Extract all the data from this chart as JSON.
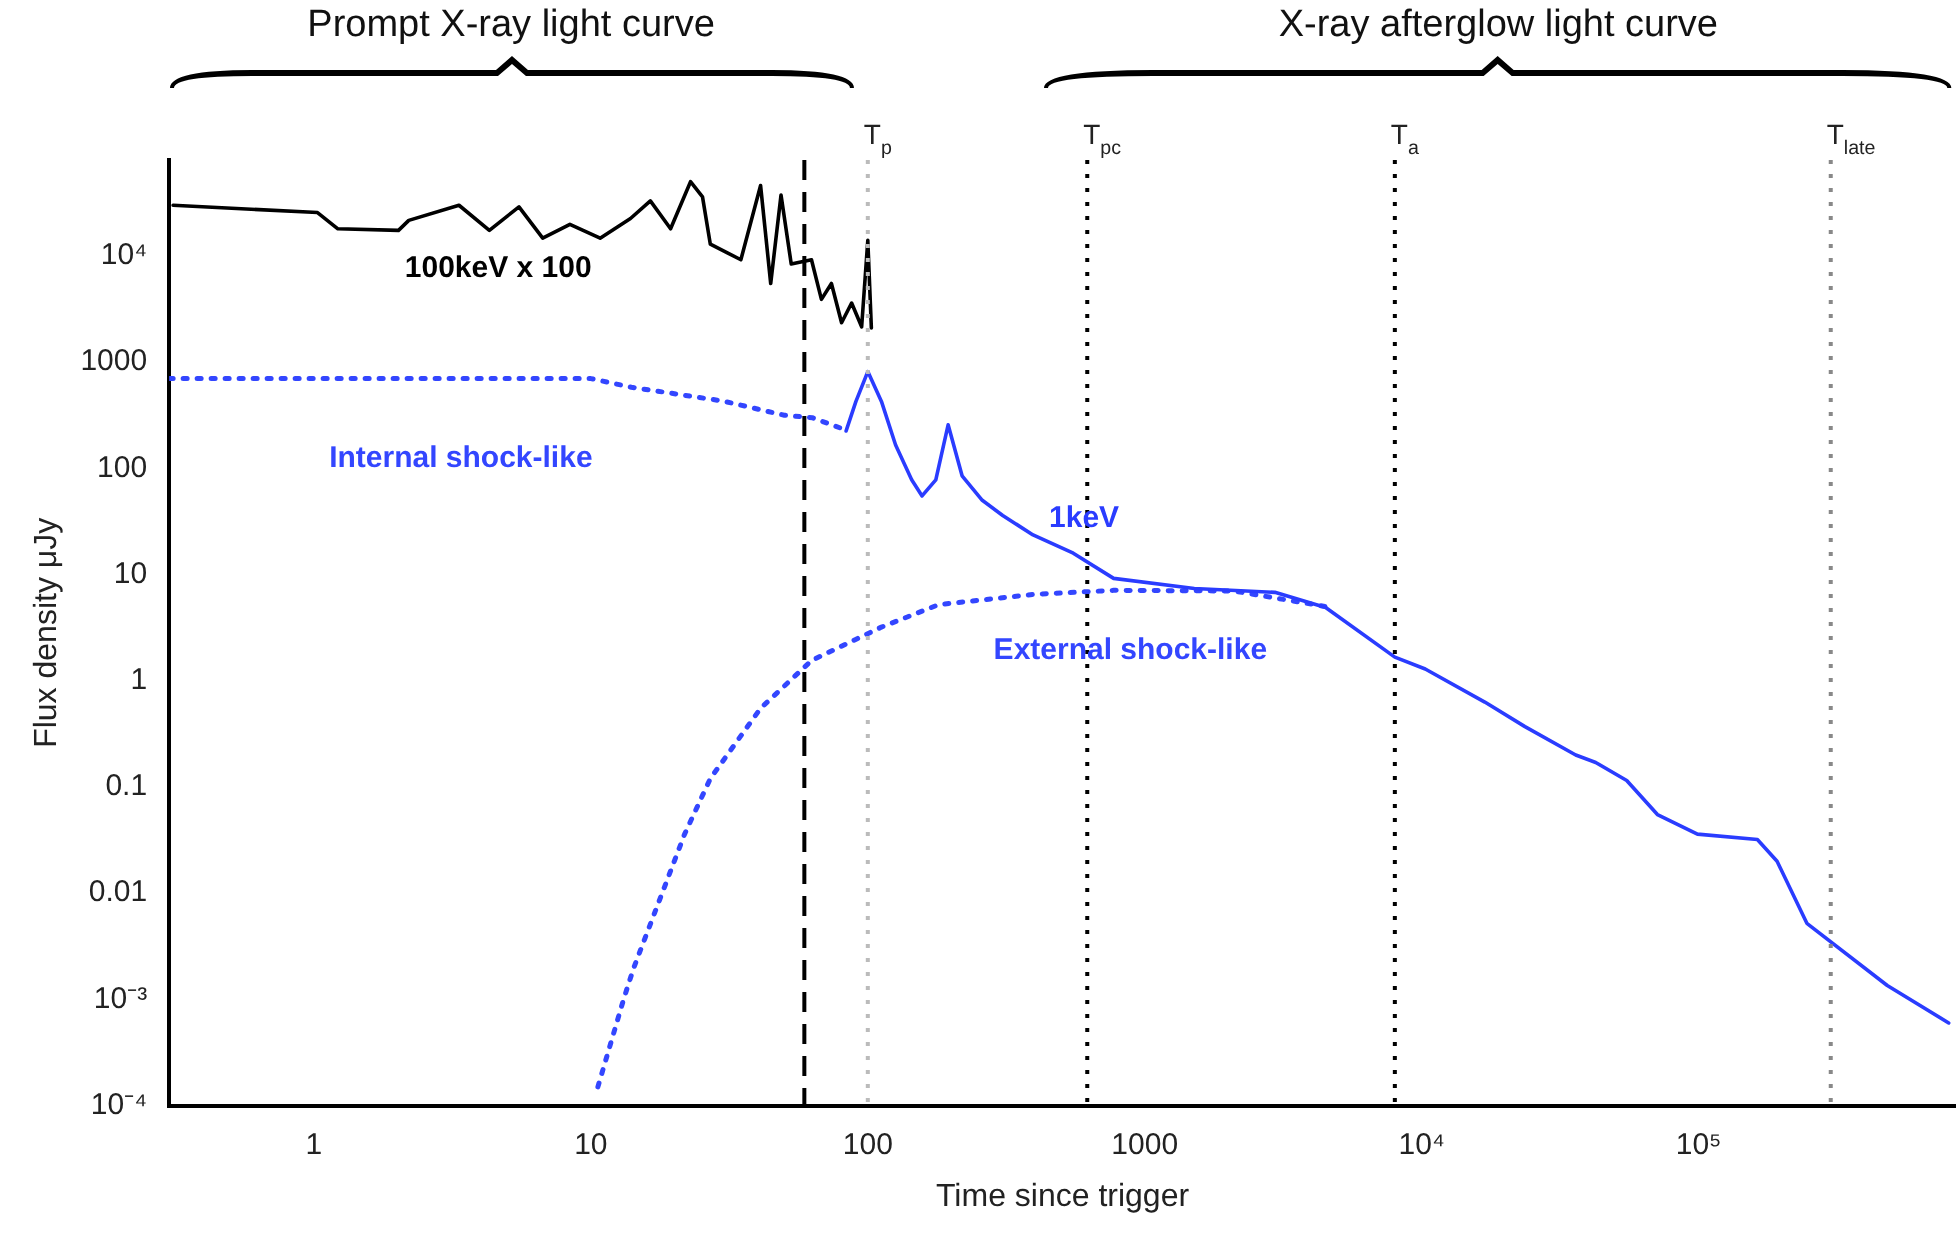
{
  "chart_data": {
    "type": "line",
    "xlabel": "Time since trigger",
    "ylabel": "Flux density μJy",
    "annotations": [
      "Prompt X-ray light curve",
      "X-ray afterglow light curve"
    ],
    "log": "xy",
    "grid": false,
    "legend": false,
    "marker": "none",
    "xlim": [
      0.3,
      850000
    ],
    "xticks": [
      1,
      10,
      100,
      1000,
      {
        "value": 10000,
        "label": "10⁴"
      },
      {
        "value": 100000,
        "label": "10⁵"
      }
    ],
    "ylim": [
      0.0001,
      80000
    ],
    "yticks": [
      {
        "value": 0.0001,
        "label": "10⁻⁴"
      },
      {
        "value": 0.001,
        "label": "10⁻³"
      },
      0.01,
      0.1,
      1,
      10,
      100,
      1000,
      {
        "value": 10000,
        "label": "10⁴"
      }
    ],
    "ref_lines": [
      {
        "axis": "x",
        "value": 59,
        "label": null,
        "line_style": "dashed",
        "color": "#000000"
      },
      {
        "axis": "x",
        "value": 100,
        "label": "T$_{p}$",
        "line_style": "dotted",
        "color": "#bbbbbb"
      },
      {
        "axis": "x",
        "value": 620,
        "label": "T$_{pc}$",
        "line_style": "dotted",
        "color": "#000000"
      },
      {
        "axis": "x",
        "value": 8000,
        "label": "T$_{a}$",
        "line_style": "dotted",
        "color": "#000000"
      },
      {
        "axis": "x",
        "value": 300000,
        "label": "T$_{late}$",
        "line_style": "dotted",
        "color": "#888888"
      }
    ],
    "series": [
      {
        "name": "100keV x 100",
        "color": "#000000",
        "line_style": "solid",
        "x": [
          0.31,
          1.03,
          1.22,
          2.02,
          2.2,
          3.34,
          4.3,
          5.5,
          6.7,
          8.4,
          10.8,
          13.9,
          16.4,
          19.4,
          22.9,
          25.3,
          27,
          34.8,
          41,
          44.6,
          48.6,
          52.9,
          62.6,
          68,
          73.9,
          80.4,
          87.4,
          95,
          100,
          103
        ],
        "values": [
          30000,
          25600,
          18000,
          17400,
          21600,
          30000,
          17400,
          29000,
          14700,
          19800,
          14700,
          22500,
          33000,
          18000,
          50000,
          36000,
          12900,
          9200,
          46000,
          5500,
          37500,
          8400,
          9200,
          3900,
          5500,
          2350,
          3600,
          2150,
          14000,
          2100
        ]
      },
      {
        "name": "1keV",
        "color": "#2a3cff",
        "line_style": "solid",
        "x": [
          83.5,
          90.6,
          100,
          112,
          126,
          144,
          157,
          176,
          195,
          219,
          259,
          307,
          395,
          552,
          772,
          1510,
          2950,
          4500,
          8000,
          10300,
          16900,
          23600,
          36000,
          42500,
          55000,
          71000,
          99000,
          163000,
          192000,
          246000,
          480000,
          800000
        ],
        "values": [
          225,
          427,
          815,
          427,
          166,
          78,
          55,
          78,
          257,
          85,
          50,
          36,
          23.6,
          15.9,
          9.2,
          7.4,
          6.8,
          4.9,
          1.67,
          1.29,
          0.63,
          0.37,
          0.2,
          0.17,
          0.115,
          0.055,
          0.036,
          0.032,
          0.02,
          0.0052,
          0.00135,
          0.0006
        ]
      },
      {
        "name": "Internal shock-like",
        "color": "#3346ff",
        "line_style": "dotted",
        "x": [
          0.3,
          3,
          10,
          14,
          30,
          50,
          63,
          85
        ],
        "values": [
          700,
          700,
          700,
          580,
          430,
          316,
          300,
          225
        ]
      },
      {
        "name": "External shock-like",
        "color": "#3346ff",
        "line_style": "dotted",
        "x": [
          10.6,
          13.2,
          14.3,
          21.8,
          27,
          41,
          62.6,
          112,
          180,
          395,
          772,
          2100,
          4500
        ],
        "values": [
          0.00015,
          0.00105,
          0.002,
          0.036,
          0.12,
          0.55,
          1.55,
          3.2,
          5.2,
          6.5,
          7.1,
          7,
          5
        ]
      }
    ]
  }
}
